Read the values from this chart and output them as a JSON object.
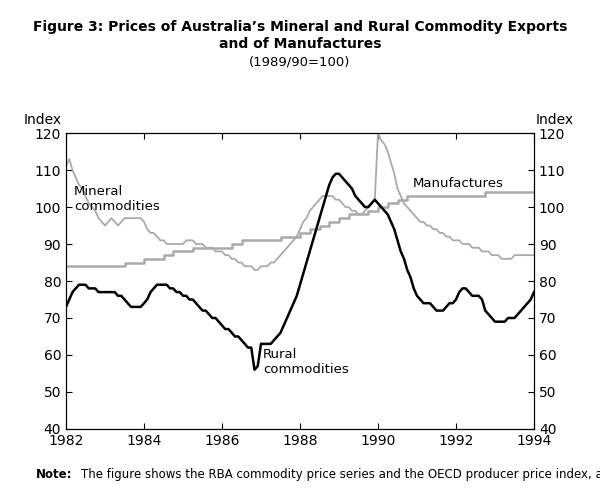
{
  "title_line1": "Figure 3: Prices of Australia’s Mineral and Rural Commodity Exports",
  "title_line2": "and of Manufactures",
  "title_line3": "(1989/90=100)",
  "ylabel_left": "Index",
  "ylabel_right": "Index",
  "note_label": "Note:",
  "note_text": "   The figure shows the RBA commodity price series and the OECD producer price index, all in $US.",
  "ylim": [
    40,
    120
  ],
  "yticks": [
    40,
    50,
    60,
    70,
    80,
    90,
    100,
    110,
    120
  ],
  "xlim": [
    1982.0,
    1994.0
  ],
  "xticks": [
    1982,
    1984,
    1986,
    1988,
    1990,
    1992,
    1994
  ],
  "mineral": {
    "t": [
      1982.0,
      1982.083,
      1982.167,
      1982.25,
      1982.333,
      1982.417,
      1982.5,
      1982.583,
      1982.667,
      1982.75,
      1982.833,
      1982.917,
      1983.0,
      1983.083,
      1983.167,
      1983.25,
      1983.333,
      1983.417,
      1983.5,
      1983.583,
      1983.667,
      1983.75,
      1983.833,
      1983.917,
      1984.0,
      1984.083,
      1984.167,
      1984.25,
      1984.333,
      1984.417,
      1984.5,
      1984.583,
      1984.667,
      1984.75,
      1984.833,
      1984.917,
      1985.0,
      1985.083,
      1985.167,
      1985.25,
      1985.333,
      1985.417,
      1985.5,
      1985.583,
      1985.667,
      1985.75,
      1985.833,
      1985.917,
      1986.0,
      1986.083,
      1986.167,
      1986.25,
      1986.333,
      1986.417,
      1986.5,
      1986.583,
      1986.667,
      1986.75,
      1986.833,
      1986.917,
      1987.0,
      1987.083,
      1987.167,
      1987.25,
      1987.333,
      1987.417,
      1987.5,
      1987.583,
      1987.667,
      1987.75,
      1987.833,
      1987.917,
      1988.0,
      1988.083,
      1988.167,
      1988.25,
      1988.333,
      1988.417,
      1988.5,
      1988.583,
      1988.667,
      1988.75,
      1988.833,
      1988.917,
      1989.0,
      1989.083,
      1989.167,
      1989.25,
      1989.333,
      1989.417,
      1989.5,
      1989.583,
      1989.667,
      1989.75,
      1989.833,
      1989.917,
      1990.0,
      1990.083,
      1990.167,
      1990.25,
      1990.333,
      1990.417,
      1990.5,
      1990.583,
      1990.667,
      1990.75,
      1990.833,
      1990.917,
      1991.0,
      1991.083,
      1991.167,
      1991.25,
      1991.333,
      1991.417,
      1991.5,
      1991.583,
      1991.667,
      1991.75,
      1991.833,
      1991.917,
      1992.0,
      1992.083,
      1992.167,
      1992.25,
      1992.333,
      1992.417,
      1992.5,
      1992.583,
      1992.667,
      1992.75,
      1992.833,
      1992.917,
      1993.0,
      1993.083,
      1993.167,
      1993.25,
      1993.333,
      1993.417,
      1993.5,
      1993.583,
      1993.667,
      1993.75,
      1993.833,
      1993.917,
      1994.0
    ],
    "v": [
      111,
      113,
      110,
      108,
      106,
      105,
      103,
      101,
      100,
      99,
      97,
      96,
      95,
      96,
      97,
      96,
      95,
      96,
      97,
      97,
      97,
      97,
      97,
      97,
      96,
      94,
      93,
      93,
      92,
      91,
      91,
      90,
      90,
      90,
      90,
      90,
      90,
      91,
      91,
      91,
      90,
      90,
      90,
      89,
      89,
      89,
      88,
      88,
      88,
      87,
      87,
      86,
      86,
      85,
      85,
      84,
      84,
      84,
      83,
      83,
      84,
      84,
      84,
      85,
      85,
      86,
      87,
      88,
      89,
      90,
      91,
      92,
      94,
      96,
      97,
      99,
      100,
      101,
      102,
      103,
      103,
      103,
      103,
      102,
      102,
      101,
      100,
      100,
      99,
      99,
      98,
      98,
      99,
      100,
      101,
      102,
      120,
      118,
      117,
      115,
      112,
      109,
      105,
      103,
      101,
      100,
      99,
      98,
      97,
      96,
      96,
      95,
      95,
      94,
      94,
      93,
      93,
      92,
      92,
      91,
      91,
      91,
      90,
      90,
      90,
      89,
      89,
      89,
      88,
      88,
      88,
      87,
      87,
      87,
      86,
      86,
      86,
      86,
      87,
      87,
      87,
      87,
      87,
      87,
      87
    ]
  },
  "rural": {
    "t": [
      1982.0,
      1982.083,
      1982.167,
      1982.25,
      1982.333,
      1982.417,
      1982.5,
      1982.583,
      1982.667,
      1982.75,
      1982.833,
      1982.917,
      1983.0,
      1983.083,
      1983.167,
      1983.25,
      1983.333,
      1983.417,
      1983.5,
      1983.583,
      1983.667,
      1983.75,
      1983.833,
      1983.917,
      1984.0,
      1984.083,
      1984.167,
      1984.25,
      1984.333,
      1984.417,
      1984.5,
      1984.583,
      1984.667,
      1984.75,
      1984.833,
      1984.917,
      1985.0,
      1985.083,
      1985.167,
      1985.25,
      1985.333,
      1985.417,
      1985.5,
      1985.583,
      1985.667,
      1985.75,
      1985.833,
      1985.917,
      1986.0,
      1986.083,
      1986.167,
      1986.25,
      1986.333,
      1986.417,
      1986.5,
      1986.583,
      1986.667,
      1986.75,
      1986.833,
      1986.917,
      1987.0,
      1987.083,
      1987.167,
      1987.25,
      1987.333,
      1987.417,
      1987.5,
      1987.583,
      1987.667,
      1987.75,
      1987.833,
      1987.917,
      1988.0,
      1988.083,
      1988.167,
      1988.25,
      1988.333,
      1988.417,
      1988.5,
      1988.583,
      1988.667,
      1988.75,
      1988.833,
      1988.917,
      1989.0,
      1989.083,
      1989.167,
      1989.25,
      1989.333,
      1989.417,
      1989.5,
      1989.583,
      1989.667,
      1989.75,
      1989.833,
      1989.917,
      1990.0,
      1990.083,
      1990.167,
      1990.25,
      1990.333,
      1990.417,
      1990.5,
      1990.583,
      1990.667,
      1990.75,
      1990.833,
      1990.917,
      1991.0,
      1991.083,
      1991.167,
      1991.25,
      1991.333,
      1991.417,
      1991.5,
      1991.583,
      1991.667,
      1991.75,
      1991.833,
      1991.917,
      1992.0,
      1992.083,
      1992.167,
      1992.25,
      1992.333,
      1992.417,
      1992.5,
      1992.583,
      1992.667,
      1992.75,
      1992.833,
      1992.917,
      1993.0,
      1993.083,
      1993.167,
      1993.25,
      1993.333,
      1993.417,
      1993.5,
      1993.583,
      1993.667,
      1993.75,
      1993.833,
      1993.917,
      1994.0
    ],
    "v": [
      73,
      75,
      77,
      78,
      79,
      79,
      79,
      78,
      78,
      78,
      77,
      77,
      77,
      77,
      77,
      77,
      76,
      76,
      75,
      74,
      73,
      73,
      73,
      73,
      74,
      75,
      77,
      78,
      79,
      79,
      79,
      79,
      78,
      78,
      77,
      77,
      76,
      76,
      75,
      75,
      74,
      73,
      72,
      72,
      71,
      70,
      70,
      69,
      68,
      67,
      67,
      66,
      65,
      65,
      64,
      63,
      62,
      62,
      56,
      57,
      63,
      63,
      63,
      63,
      64,
      65,
      66,
      68,
      70,
      72,
      74,
      76,
      79,
      82,
      85,
      88,
      91,
      94,
      97,
      100,
      103,
      106,
      108,
      109,
      109,
      108,
      107,
      106,
      105,
      103,
      102,
      101,
      100,
      100,
      101,
      102,
      101,
      100,
      99,
      98,
      96,
      94,
      91,
      88,
      86,
      83,
      81,
      78,
      76,
      75,
      74,
      74,
      74,
      73,
      72,
      72,
      72,
      73,
      74,
      74,
      75,
      77,
      78,
      78,
      77,
      76,
      76,
      76,
      75,
      72,
      71,
      70,
      69,
      69,
      69,
      69,
      70,
      70,
      70,
      71,
      72,
      73,
      74,
      75,
      77
    ]
  },
  "manufactures": {
    "t": [
      1982.0,
      1982.25,
      1982.5,
      1982.75,
      1983.0,
      1983.25,
      1983.5,
      1983.75,
      1984.0,
      1984.25,
      1984.5,
      1984.75,
      1985.0,
      1985.25,
      1985.5,
      1985.75,
      1986.0,
      1986.25,
      1986.5,
      1986.75,
      1987.0,
      1987.25,
      1987.5,
      1987.75,
      1988.0,
      1988.25,
      1988.5,
      1988.75,
      1989.0,
      1989.25,
      1989.5,
      1989.75,
      1990.0,
      1990.25,
      1990.5,
      1990.75,
      1991.0,
      1991.25,
      1991.5,
      1991.75,
      1992.0,
      1992.25,
      1992.5,
      1992.75,
      1993.0,
      1993.25,
      1993.5,
      1993.75,
      1994.0
    ],
    "v": [
      84,
      84,
      84,
      84,
      84,
      84,
      85,
      85,
      86,
      86,
      87,
      88,
      88,
      89,
      89,
      89,
      89,
      90,
      91,
      91,
      91,
      91,
      92,
      92,
      93,
      94,
      95,
      96,
      97,
      98,
      98,
      99,
      100,
      101,
      102,
      103,
      103,
      103,
      103,
      103,
      103,
      103,
      103,
      104,
      104,
      104,
      104,
      104,
      104
    ]
  },
  "mineral_color": "#aaaaaa",
  "rural_color": "#000000",
  "manufactures_color": "#aaaaaa",
  "rural_linewidth": 1.8,
  "mineral_linewidth": 1.3,
  "manufactures_linewidth": 1.8
}
